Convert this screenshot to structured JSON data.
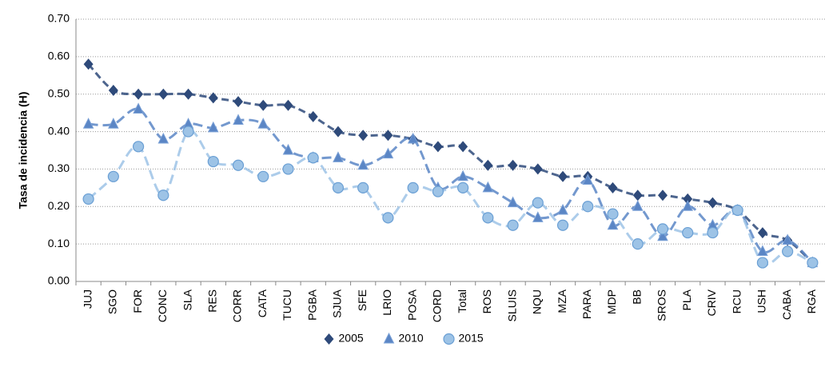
{
  "chart_data": {
    "type": "line",
    "y_label": "Tasa de incidencia (H)",
    "categories": [
      "JUJ",
      "SGO",
      "FOR",
      "CONC",
      "SLA",
      "RES",
      "CORR",
      "CATA",
      "TUCU",
      "PGBA",
      "SJUA",
      "SFE",
      "LRIO",
      "POSA",
      "CORD",
      "Total",
      "ROS",
      "SLUIS",
      "NQU",
      "MZA",
      "PARA",
      "MDP",
      "BB",
      "SROS",
      "PLA",
      "CRIV",
      "RCU",
      "USH",
      "CABA",
      "RGA"
    ],
    "series": [
      {
        "name": "2005",
        "color": "#2e4a7a",
        "marker": "diamond",
        "values": [
          0.58,
          0.51,
          0.5,
          0.5,
          0.5,
          0.49,
          0.48,
          0.47,
          0.47,
          0.44,
          0.4,
          0.39,
          0.39,
          0.38,
          0.36,
          0.36,
          0.31,
          0.31,
          0.3,
          0.28,
          0.28,
          0.25,
          0.23,
          0.23,
          0.22,
          0.21,
          0.19,
          0.13,
          0.11,
          0.05
        ]
      },
      {
        "name": "2010",
        "color": "#5b86c5",
        "marker": "triangle",
        "values": [
          0.42,
          0.42,
          0.46,
          0.38,
          0.42,
          0.41,
          0.43,
          0.42,
          0.35,
          0.33,
          0.33,
          0.31,
          0.34,
          0.38,
          0.25,
          0.28,
          0.25,
          0.21,
          0.17,
          0.19,
          0.27,
          0.15,
          0.2,
          0.12,
          0.2,
          0.15,
          0.19,
          0.08,
          0.11,
          0.05
        ]
      },
      {
        "name": "2015",
        "color": "#9dc3e6",
        "marker": "circle",
        "values": [
          0.22,
          0.28,
          0.36,
          0.23,
          0.4,
          0.32,
          0.31,
          0.28,
          0.3,
          0.33,
          0.25,
          0.25,
          0.17,
          0.25,
          0.24,
          0.25,
          0.17,
          0.15,
          0.21,
          0.15,
          0.2,
          0.18,
          0.1,
          0.14,
          0.13,
          0.13,
          0.19,
          0.05,
          0.08,
          0.05
        ]
      }
    ],
    "ylim": [
      0,
      0.7
    ],
    "yticks": [
      {
        "value": 0,
        "label": "0.00"
      },
      {
        "value": 0.1,
        "label": "0.10"
      },
      {
        "value": 0.2,
        "label": "0.20"
      },
      {
        "value": 0.3,
        "label": "0.30"
      },
      {
        "value": 0.4,
        "label": "0.40"
      },
      {
        "value": 0.5,
        "label": "0.50"
      },
      {
        "value": 0.6,
        "label": "0.60"
      },
      {
        "value": 0.7,
        "label": "0.70"
      }
    ],
    "grid": true,
    "legend": "bottom"
  }
}
